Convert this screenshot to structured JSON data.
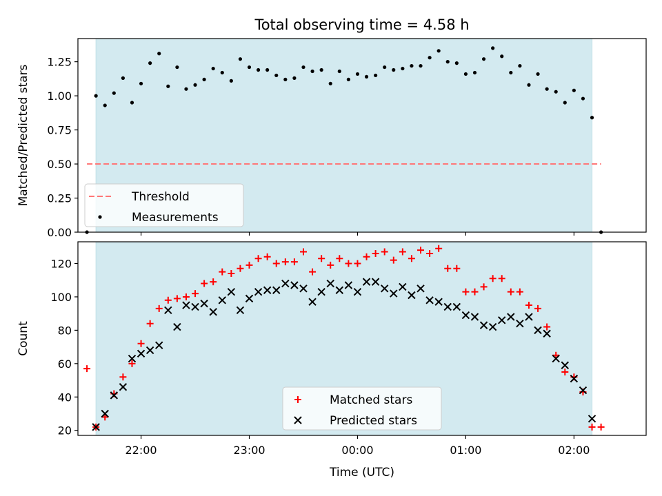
{
  "title": "Total observing time = 4.58 h",
  "chart_data": [
    {
      "type": "scatter",
      "ylabel": "Matched/Predicted stars",
      "xlim": [
        "21:25",
        "02:40"
      ],
      "ylim": [
        0,
        1.42
      ],
      "yticks": [
        "0.00",
        "0.25",
        "0.50",
        "0.75",
        "1.00",
        "1.25"
      ],
      "shaded_span": [
        "21:35",
        "02:10"
      ],
      "threshold": {
        "name": "Threshold",
        "value": 0.5,
        "x_range": [
          "21:30",
          "02:15"
        ],
        "color": "#ff7777"
      },
      "legend": {
        "position": "lower-left",
        "entries": [
          "Threshold",
          "Measurements"
        ]
      },
      "series": [
        {
          "name": "Measurements",
          "color": "#000000",
          "points": [
            [
              "21:30",
              0.0
            ],
            [
              "21:35",
              1.0
            ],
            [
              "21:40",
              0.93
            ],
            [
              "21:45",
              1.02
            ],
            [
              "21:50",
              1.13
            ],
            [
              "21:55",
              0.95
            ],
            [
              "22:00",
              1.09
            ],
            [
              "22:05",
              1.24
            ],
            [
              "22:10",
              1.31
            ],
            [
              "22:15",
              1.07
            ],
            [
              "22:20",
              1.21
            ],
            [
              "22:25",
              1.05
            ],
            [
              "22:30",
              1.08
            ],
            [
              "22:35",
              1.12
            ],
            [
              "22:40",
              1.2
            ],
            [
              "22:45",
              1.17
            ],
            [
              "22:50",
              1.11
            ],
            [
              "22:55",
              1.27
            ],
            [
              "23:00",
              1.21
            ],
            [
              "23:05",
              1.19
            ],
            [
              "23:10",
              1.19
            ],
            [
              "23:15",
              1.15
            ],
            [
              "23:20",
              1.12
            ],
            [
              "23:25",
              1.13
            ],
            [
              "23:30",
              1.21
            ],
            [
              "23:35",
              1.18
            ],
            [
              "23:40",
              1.19
            ],
            [
              "23:45",
              1.09
            ],
            [
              "23:50",
              1.18
            ],
            [
              "23:55",
              1.12
            ],
            [
              "00:00",
              1.16
            ],
            [
              "00:05",
              1.14
            ],
            [
              "00:10",
              1.15
            ],
            [
              "00:15",
              1.21
            ],
            [
              "00:20",
              1.19
            ],
            [
              "00:25",
              1.2
            ],
            [
              "00:30",
              1.22
            ],
            [
              "00:35",
              1.22
            ],
            [
              "00:40",
              1.28
            ],
            [
              "00:45",
              1.33
            ],
            [
              "00:50",
              1.25
            ],
            [
              "00:55",
              1.24
            ],
            [
              "01:00",
              1.16
            ],
            [
              "01:05",
              1.17
            ],
            [
              "01:10",
              1.27
            ],
            [
              "01:15",
              1.35
            ],
            [
              "01:20",
              1.29
            ],
            [
              "01:25",
              1.17
            ],
            [
              "01:30",
              1.22
            ],
            [
              "01:35",
              1.08
            ],
            [
              "01:40",
              1.16
            ],
            [
              "01:45",
              1.05
            ],
            [
              "01:50",
              1.03
            ],
            [
              "01:55",
              0.95
            ],
            [
              "02:00",
              1.04
            ],
            [
              "02:05",
              0.98
            ],
            [
              "02:10",
              0.84
            ],
            [
              "02:15",
              0.0
            ]
          ]
        }
      ]
    },
    {
      "type": "scatter",
      "xlabel": "Time (UTC)",
      "ylabel": "Count",
      "xlim": [
        "21:25",
        "02:40"
      ],
      "ylim": [
        17,
        133
      ],
      "xticks": [
        "22:00",
        "23:00",
        "00:00",
        "01:00",
        "02:00"
      ],
      "yticks": [
        "20",
        "40",
        "60",
        "80",
        "100",
        "120"
      ],
      "shaded_span": [
        "21:35",
        "02:10"
      ],
      "legend": {
        "position": "lower-center",
        "entries": [
          "Matched stars",
          "Predicted stars"
        ]
      },
      "series": [
        {
          "name": "Matched stars",
          "marker": "+",
          "color": "#ff0000",
          "points": [
            [
              "21:30",
              57
            ],
            [
              "21:35",
              22
            ],
            [
              "21:40",
              28
            ],
            [
              "21:45",
              42
            ],
            [
              "21:50",
              52
            ],
            [
              "21:55",
              60
            ],
            [
              "22:00",
              72
            ],
            [
              "22:05",
              84
            ],
            [
              "22:10",
              93
            ],
            [
              "22:15",
              98
            ],
            [
              "22:20",
              99
            ],
            [
              "22:25",
              100
            ],
            [
              "22:30",
              102
            ],
            [
              "22:35",
              108
            ],
            [
              "22:40",
              109
            ],
            [
              "22:45",
              115
            ],
            [
              "22:50",
              114
            ],
            [
              "22:55",
              117
            ],
            [
              "23:00",
              119
            ],
            [
              "23:05",
              123
            ],
            [
              "23:10",
              124
            ],
            [
              "23:15",
              120
            ],
            [
              "23:20",
              121
            ],
            [
              "23:25",
              121
            ],
            [
              "23:30",
              127
            ],
            [
              "23:35",
              115
            ],
            [
              "23:40",
              123
            ],
            [
              "23:45",
              119
            ],
            [
              "23:50",
              123
            ],
            [
              "23:55",
              120
            ],
            [
              "00:00",
              120
            ],
            [
              "00:05",
              124
            ],
            [
              "00:10",
              126
            ],
            [
              "00:15",
              127
            ],
            [
              "00:20",
              122
            ],
            [
              "00:25",
              127
            ],
            [
              "00:30",
              123
            ],
            [
              "00:35",
              128
            ],
            [
              "00:40",
              126
            ],
            [
              "00:45",
              129
            ],
            [
              "00:50",
              117
            ],
            [
              "00:55",
              117
            ],
            [
              "01:00",
              103
            ],
            [
              "01:05",
              103
            ],
            [
              "01:10",
              106
            ],
            [
              "01:15",
              111
            ],
            [
              "01:20",
              111
            ],
            [
              "01:25",
              103
            ],
            [
              "01:30",
              103
            ],
            [
              "01:35",
              95
            ],
            [
              "01:40",
              93
            ],
            [
              "01:45",
              82
            ],
            [
              "01:50",
              65
            ],
            [
              "01:55",
              55
            ],
            [
              "02:00",
              52
            ],
            [
              "02:05",
              43
            ],
            [
              "02:10",
              22
            ],
            [
              "02:15",
              22
            ]
          ]
        },
        {
          "name": "Predicted stars",
          "marker": "x",
          "color": "#000000",
          "points": [
            [
              "21:35",
              22
            ],
            [
              "21:40",
              30
            ],
            [
              "21:45",
              41
            ],
            [
              "21:50",
              46
            ],
            [
              "21:55",
              63
            ],
            [
              "22:00",
              66
            ],
            [
              "22:05",
              68
            ],
            [
              "22:10",
              71
            ],
            [
              "22:15",
              92
            ],
            [
              "22:20",
              82
            ],
            [
              "22:25",
              95
            ],
            [
              "22:30",
              94
            ],
            [
              "22:35",
              96
            ],
            [
              "22:40",
              91
            ],
            [
              "22:45",
              98
            ],
            [
              "22:50",
              103
            ],
            [
              "22:55",
              92
            ],
            [
              "23:00",
              99
            ],
            [
              "23:05",
              103
            ],
            [
              "23:10",
              104
            ],
            [
              "23:15",
              104
            ],
            [
              "23:20",
              108
            ],
            [
              "23:25",
              107
            ],
            [
              "23:30",
              105
            ],
            [
              "23:35",
              97
            ],
            [
              "23:40",
              103
            ],
            [
              "23:45",
              108
            ],
            [
              "23:50",
              104
            ],
            [
              "23:55",
              107
            ],
            [
              "00:00",
              103
            ],
            [
              "00:05",
              109
            ],
            [
              "00:10",
              109
            ],
            [
              "00:15",
              105
            ],
            [
              "00:20",
              102
            ],
            [
              "00:25",
              106
            ],
            [
              "00:30",
              101
            ],
            [
              "00:35",
              105
            ],
            [
              "00:40",
              98
            ],
            [
              "00:45",
              97
            ],
            [
              "00:50",
              94
            ],
            [
              "00:55",
              94
            ],
            [
              "01:00",
              89
            ],
            [
              "01:05",
              88
            ],
            [
              "01:10",
              83
            ],
            [
              "01:15",
              82
            ],
            [
              "01:20",
              86
            ],
            [
              "01:25",
              88
            ],
            [
              "01:30",
              84
            ],
            [
              "01:35",
              88
            ],
            [
              "01:40",
              80
            ],
            [
              "01:45",
              78
            ],
            [
              "01:50",
              63
            ],
            [
              "01:55",
              59
            ],
            [
              "02:00",
              51
            ],
            [
              "02:05",
              44
            ],
            [
              "02:10",
              27
            ]
          ]
        }
      ]
    }
  ]
}
